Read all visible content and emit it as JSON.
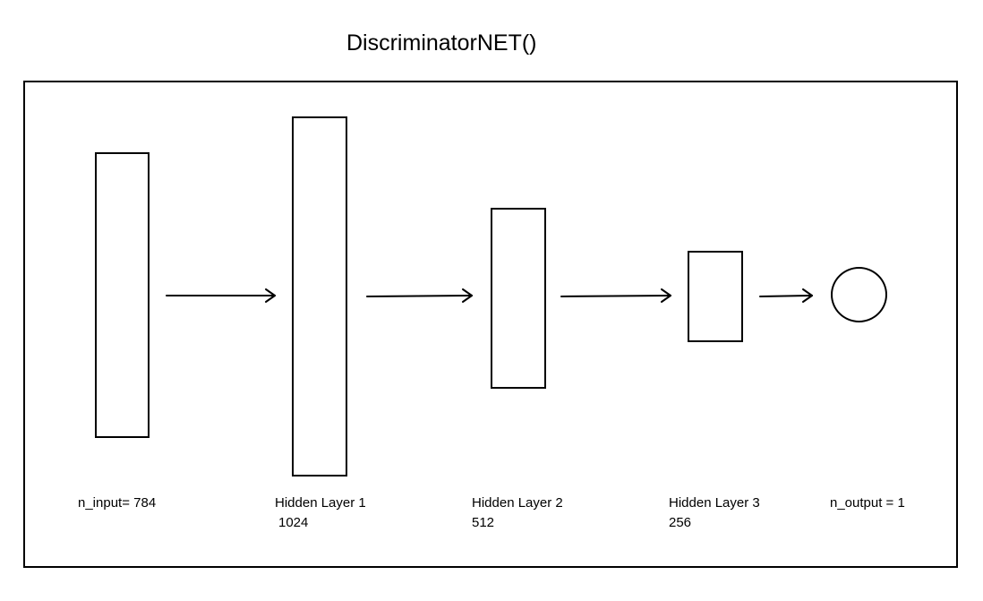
{
  "title": "DiscriminatorNET()",
  "layers": [
    {
      "id": "input",
      "label": "n_input= 784"
    },
    {
      "id": "hidden1",
      "label": "Hidden Layer 1",
      "size": "1024"
    },
    {
      "id": "hidden2",
      "label": "Hidden Layer 2",
      "size": "512"
    },
    {
      "id": "hidden3",
      "label": "Hidden Layer 3",
      "size": "256"
    },
    {
      "id": "output",
      "label": "n_output = 1"
    }
  ],
  "colors": {
    "stroke": "#000000",
    "background": "#ffffff"
  }
}
